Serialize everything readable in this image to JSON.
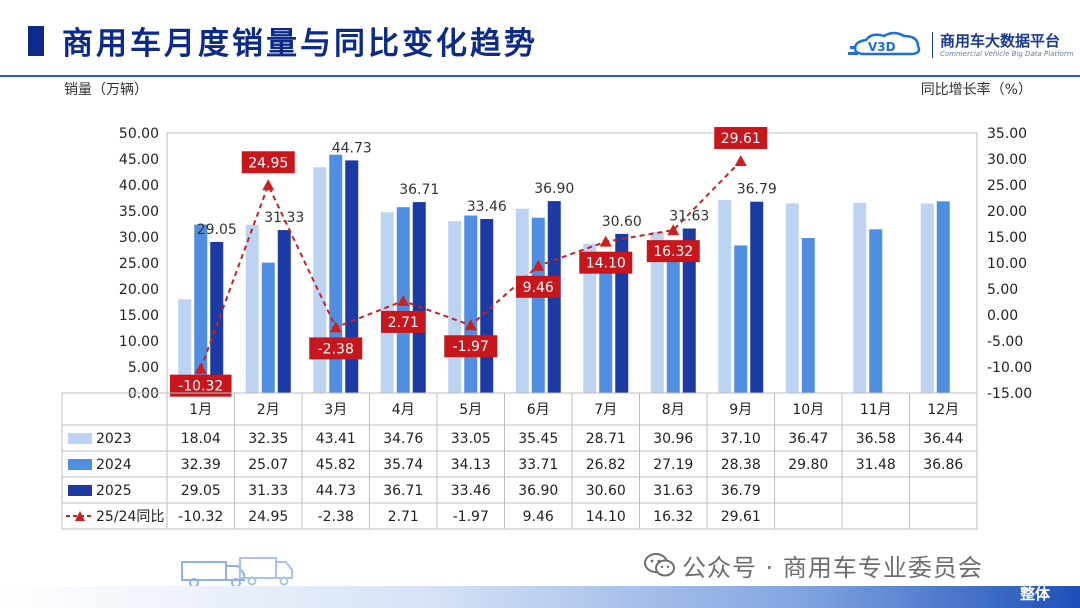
{
  "header": {
    "title": "商用车月度销量与同比变化趋势",
    "logo_mark": "V3D",
    "logo_cn": "商用车大数据平台",
    "logo_en": "Commercial Vehicle Big Data Platform"
  },
  "footer": {
    "watermark": "公众号 · 商用车专业委员会",
    "tag": "整体"
  },
  "chart_data": {
    "type": "bar",
    "ylabel": "销量（万辆）",
    "y2label": "同比增长率（%）",
    "ylim": [
      0,
      50
    ],
    "y2lim": [
      -15,
      35
    ],
    "yticks": [
      "0.00",
      "5.00",
      "10.00",
      "15.00",
      "20.00",
      "25.00",
      "30.00",
      "35.00",
      "40.00",
      "45.00",
      "50.00"
    ],
    "y2ticks": [
      "-15.00",
      "-10.00",
      "-5.00",
      "0.00",
      "5.00",
      "10.00",
      "15.00",
      "20.00",
      "25.00",
      "30.00",
      "35.00"
    ],
    "categories": [
      "1月",
      "2月",
      "3月",
      "4月",
      "5月",
      "6月",
      "7月",
      "8月",
      "9月",
      "10月",
      "11月",
      "12月"
    ],
    "series": [
      {
        "name": "2023",
        "type": "bar",
        "color": "#bcd3f2",
        "values": [
          18.04,
          32.35,
          43.41,
          34.76,
          33.05,
          35.45,
          28.71,
          30.96,
          37.1,
          36.47,
          36.58,
          36.44
        ]
      },
      {
        "name": "2024",
        "type": "bar",
        "color": "#4f8ee0",
        "values": [
          32.39,
          25.07,
          45.82,
          35.74,
          34.13,
          33.71,
          26.82,
          27.19,
          28.38,
          29.8,
          31.48,
          36.86
        ]
      },
      {
        "name": "2025",
        "type": "bar",
        "color": "#1c3aa3",
        "values": [
          29.05,
          31.33,
          44.73,
          36.71,
          33.46,
          36.9,
          30.6,
          31.63,
          36.79,
          null,
          null,
          null
        ]
      },
      {
        "name": "25/24同比",
        "type": "line",
        "axis": "right",
        "color": "#cc1f1f",
        "values": [
          -10.32,
          24.95,
          -2.38,
          2.71,
          -1.97,
          9.46,
          14.1,
          16.32,
          29.61,
          null,
          null,
          null
        ]
      }
    ],
    "bar_labels_2025": [
      "29.05",
      "31.33",
      "44.73",
      "36.71",
      "33.46",
      "36.90",
      "30.60",
      "31.63",
      "36.79"
    ],
    "yoy_labels": [
      "-10.32",
      "24.95",
      "-2.38",
      "2.71",
      "-1.97",
      "9.46",
      "14.10",
      "16.32",
      "29.61"
    ],
    "table": {
      "rows": [
        {
          "label": "2023",
          "cells": [
            "18.04",
            "32.35",
            "43.41",
            "34.76",
            "33.05",
            "35.45",
            "28.71",
            "30.96",
            "37.10",
            "36.47",
            "36.58",
            "36.44"
          ]
        },
        {
          "label": "2024",
          "cells": [
            "32.39",
            "25.07",
            "45.82",
            "35.74",
            "34.13",
            "33.71",
            "26.82",
            "27.19",
            "28.38",
            "29.80",
            "31.48",
            "36.86"
          ]
        },
        {
          "label": "2025",
          "cells": [
            "29.05",
            "31.33",
            "44.73",
            "36.71",
            "33.46",
            "36.90",
            "30.60",
            "31.63",
            "36.79",
            "",
            "",
            ""
          ]
        },
        {
          "label": "25/24同比",
          "cells": [
            "-10.32",
            "24.95",
            "-2.38",
            "2.71",
            "-1.97",
            "9.46",
            "14.10",
            "16.32",
            "29.61",
            "",
            "",
            ""
          ]
        }
      ]
    },
    "legend": "table",
    "grid": false
  }
}
